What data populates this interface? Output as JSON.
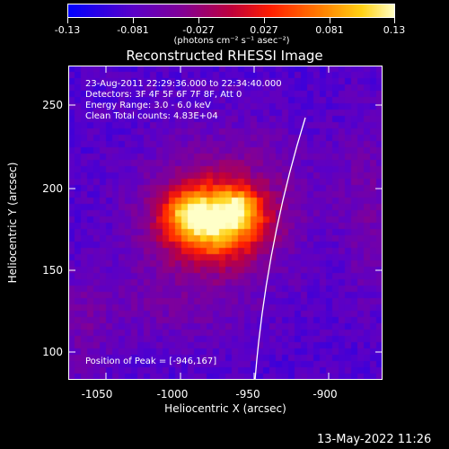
{
  "colorbar": {
    "ticks": [
      "-0.13",
      "-0.081",
      "-0.027",
      "0.027",
      "0.081",
      "0.13"
    ],
    "units": "(photons cm⁻² s⁻¹ asec⁻²)",
    "range": [
      -0.13,
      0.13
    ],
    "colors": [
      "#0000ff",
      "#8000c0",
      "#c00040",
      "#ff4000",
      "#ffb000",
      "#ffffc0"
    ]
  },
  "plot": {
    "title": "Reconstructed RHESSI Image",
    "info_lines": [
      "23-Aug-2011 22:29:36.000 to 22:34:40.000",
      "Detectors: 3F 4F 5F 6F 7F 8F, Att 0",
      "Energy Range: 3.0 - 6.0 keV",
      "Clean     Total counts: 4.83E+04"
    ],
    "peak_text": "Position of Peak = [-946,167]",
    "xlabel": "Heliocentric X (arcsec)",
    "ylabel": "Heliocentric Y (arcsec)",
    "xticks": [
      "-1050",
      "-1000",
      "-950",
      "-900"
    ],
    "yticks": [
      "250",
      "200",
      "150",
      "100"
    ],
    "xlim": [
      -1075,
      -865
    ],
    "ylim": [
      80,
      290
    ],
    "peak": {
      "x": -946,
      "y": 167
    }
  },
  "timestamp": "13-May-2022 11:26"
}
